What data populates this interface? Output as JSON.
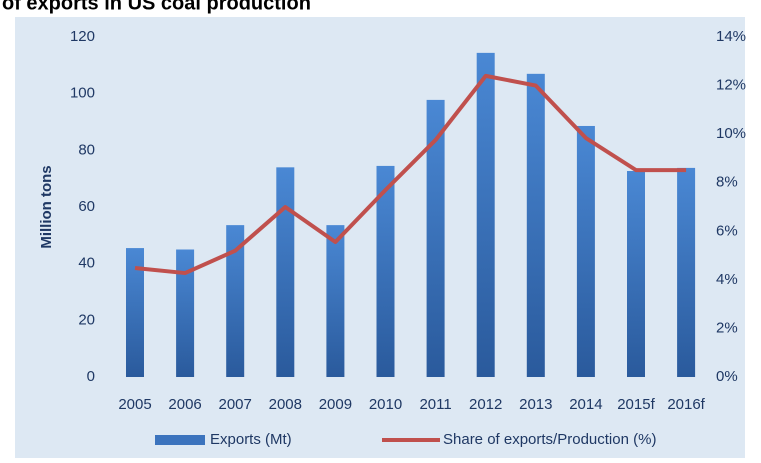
{
  "chart_data": {
    "type": "bar_line",
    "title": "of exports in US coal production",
    "y_label": "Million tons",
    "categories": [
      "2005",
      "2006",
      "2007",
      "2008",
      "2009",
      "2010",
      "2011",
      "2012",
      "2013",
      "2014",
      "2015f",
      "2016f"
    ],
    "series": [
      {
        "name": "Exports (Mt)",
        "color": "#3b73bd",
        "type": "bar",
        "values": [
          45.5,
          45,
          53.6,
          74,
          53.6,
          74.5,
          97.8,
          114.4,
          107,
          88.6,
          72.7,
          73.8
        ]
      },
      {
        "name": "Share of exports/Production (%)",
        "color": "#c0504d",
        "type": "line",
        "axis": "y2",
        "values": [
          4.49,
          4.28,
          5.2,
          7.0,
          5.56,
          7.7,
          9.76,
          12.4,
          12.0,
          9.84,
          8.52,
          8.52
        ]
      }
    ],
    "ylim": [
      0,
      120
    ],
    "yticks": [
      0,
      20,
      40,
      60,
      80,
      100,
      120
    ],
    "y2lim": [
      0,
      14
    ],
    "y2ticks": [
      {
        "value": 0,
        "label": "0%"
      },
      {
        "value": 2,
        "label": "2%"
      },
      {
        "value": 4,
        "label": "4%"
      },
      {
        "value": 6,
        "label": "6%"
      },
      {
        "value": 8,
        "label": "8%"
      },
      {
        "value": 10,
        "label": "10%"
      },
      {
        "value": 12,
        "label": "12%"
      },
      {
        "value": 14,
        "label": "14%"
      }
    ]
  }
}
